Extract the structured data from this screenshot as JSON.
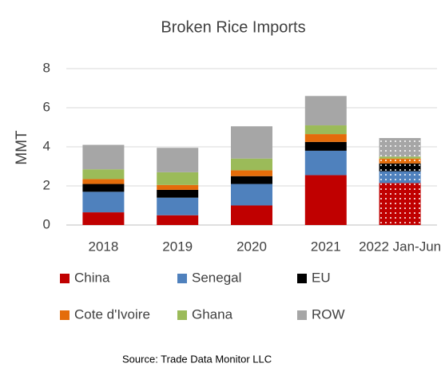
{
  "chart_data": {
    "type": "stacked_bar",
    "title": "Broken Rice Imports",
    "y_label": "MMT",
    "source": "Source: Trade Data Monitor LLC",
    "categories": [
      "2018",
      "2019",
      "2020",
      "2021",
      "2022 Jan-Jun"
    ],
    "series": [
      {
        "name": "China",
        "color": "#c00000",
        "values": [
          0.65,
          0.5,
          1.0,
          2.55,
          2.15
        ]
      },
      {
        "name": "Senegal",
        "color": "#4f81bd",
        "values": [
          1.05,
          0.9,
          1.1,
          1.25,
          0.6
        ]
      },
      {
        "name": "EU",
        "color": "#000000",
        "values": [
          0.4,
          0.4,
          0.4,
          0.45,
          0.4
        ]
      },
      {
        "name": "Cote d'Ivoire",
        "color": "#e46c0a",
        "values": [
          0.25,
          0.25,
          0.3,
          0.4,
          0.25
        ]
      },
      {
        "name": "Ghana",
        "color": "#9bbb59",
        "values": [
          0.5,
          0.65,
          0.6,
          0.45,
          0.1
        ]
      },
      {
        "name": "ROW",
        "color": "#a6a6a6",
        "values": [
          1.25,
          1.25,
          1.65,
          1.5,
          0.95
        ]
      }
    ],
    "patterned_categories": [
      4
    ],
    "ylim": [
      0,
      8
    ],
    "yticks": [
      0,
      2,
      4,
      6,
      8
    ],
    "grid": true
  }
}
